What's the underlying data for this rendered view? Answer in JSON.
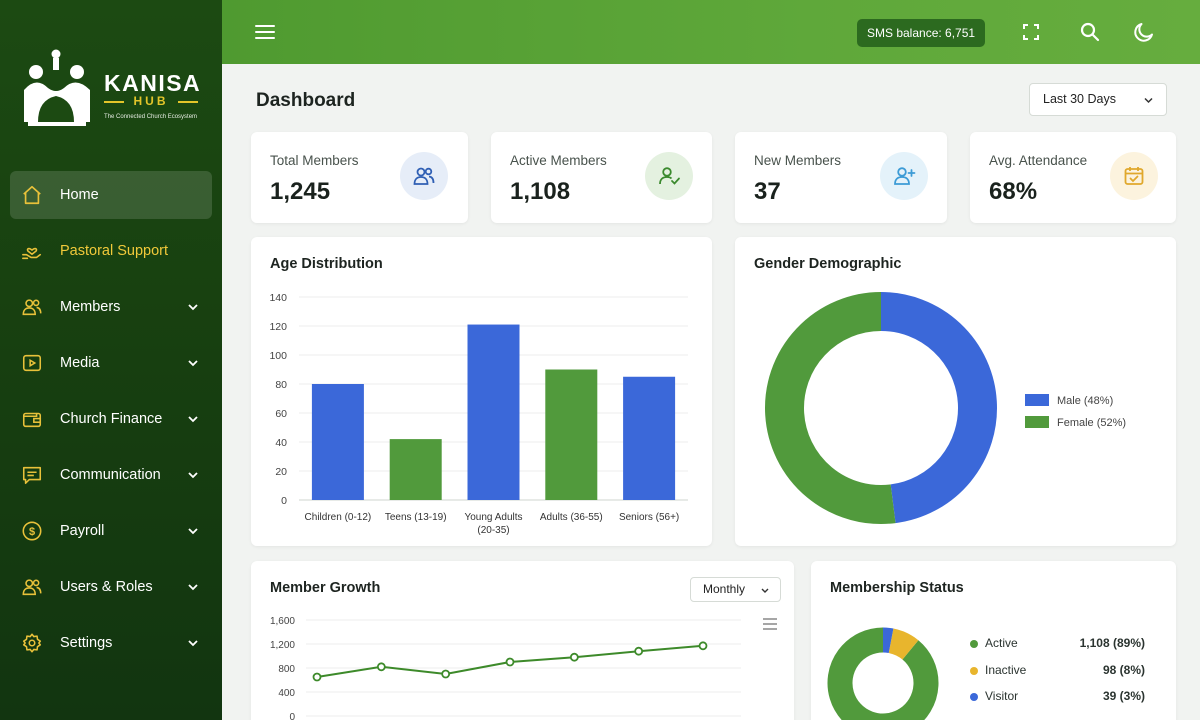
{
  "brand": {
    "name": "KANISA",
    "sub": "HUB",
    "tagline": "The Connected Church Ecosystem"
  },
  "sidebar": {
    "items": [
      {
        "label": "Home",
        "icon": "home-icon",
        "active": true
      },
      {
        "label": "Pastoral Support",
        "icon": "hand-heart-icon",
        "highlight": true
      },
      {
        "label": "Members",
        "icon": "users-icon",
        "expandable": true
      },
      {
        "label": "Media",
        "icon": "play-icon",
        "expandable": true
      },
      {
        "label": "Church Finance",
        "icon": "wallet-icon",
        "expandable": true
      },
      {
        "label": "Communication",
        "icon": "message-icon",
        "expandable": true
      },
      {
        "label": "Payroll",
        "icon": "dollar-icon",
        "expandable": true
      },
      {
        "label": "Users & Roles",
        "icon": "user-roles-icon",
        "expandable": true
      },
      {
        "label": "Settings",
        "icon": "gear-icon",
        "expandable": true
      }
    ]
  },
  "topbar": {
    "sms_balance": "SMS balance: 6,751"
  },
  "page": {
    "title": "Dashboard",
    "range": "Last 30 Days"
  },
  "stats": [
    {
      "label": "Total Members",
      "value": "1,245",
      "icon": "users-icon",
      "icon_color": "#2f5fb4",
      "icon_bg": "#e6edf8"
    },
    {
      "label": "Active Members",
      "value": "1,108",
      "icon": "user-check-icon",
      "icon_color": "#3b8a2e",
      "icon_bg": "#e4f1e0"
    },
    {
      "label": "New Members",
      "value": "37",
      "icon": "user-plus-icon",
      "icon_color": "#3c9bd6",
      "icon_bg": "#e4f2fa"
    },
    {
      "label": "Avg. Attendance",
      "value": "68%",
      "icon": "calendar-check-icon",
      "icon_color": "#e0a82c",
      "icon_bg": "#fcf3de"
    }
  ],
  "age_chart": {
    "title": "Age Distribution",
    "chart_data": {
      "type": "bar",
      "categories": [
        "Children (0-12)",
        "Teens (13-19)",
        "Young Adults (20-35)",
        "Adults (36-55)",
        "Seniors (56+)"
      ],
      "values": [
        80,
        42,
        121,
        90,
        85
      ],
      "colors": [
        "#3b68d9",
        "#519a3c",
        "#3b68d9",
        "#519a3c",
        "#3b68d9"
      ],
      "ylim": [
        0,
        140
      ],
      "yticks": [
        0,
        20,
        40,
        60,
        80,
        100,
        120,
        140
      ],
      "grid": true
    }
  },
  "gender_chart": {
    "title": "Gender Demographic",
    "chart_data": {
      "type": "pie",
      "labels": [
        "Male (48%)",
        "Female (52%)"
      ],
      "values": [
        48,
        52
      ],
      "colors": [
        "#3b68d9",
        "#519a3c"
      ],
      "legend": "right"
    }
  },
  "growth_chart": {
    "title": "Member Growth",
    "period": "Monthly",
    "chart_data": {
      "type": "line",
      "y": [
        650,
        820,
        700,
        900,
        980,
        1080,
        1170
      ],
      "ylim": [
        0,
        1600
      ],
      "yticks": [
        "0",
        "400",
        "800",
        "1,200",
        "1,600"
      ],
      "color": "#3d8a2a",
      "grid": true
    }
  },
  "status_chart": {
    "title": "Membership Status",
    "chart_data": {
      "type": "pie",
      "labels": [
        "Active",
        "Inactive",
        "Visitor"
      ],
      "values": [
        89,
        8,
        3
      ],
      "display": [
        "1,108 (89%)",
        "98 (8%)",
        "39 (3%)"
      ],
      "colors": [
        "#519a3c",
        "#e8b52d",
        "#3b68d9"
      ],
      "legend": "right"
    }
  }
}
